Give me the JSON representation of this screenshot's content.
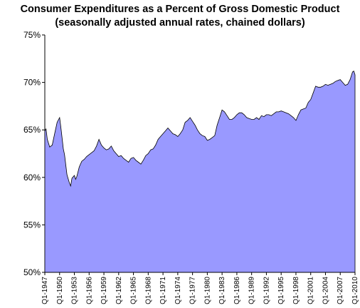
{
  "chart_data": {
    "type": "area",
    "title": "Consumer Expenditures as a Percent of Gross Domestic Product",
    "subtitle": "(seasonally adjusted annual rates, chained dollars)",
    "xlabel": "",
    "ylabel": "",
    "ylim": [
      50,
      75
    ],
    "y_ticks": [
      "50%",
      "55%",
      "60%",
      "65%",
      "70%",
      "75%"
    ],
    "x_ticks": [
      "Q1-1947",
      "Q1-1950",
      "Q1-1953",
      "Q1-1956",
      "Q1-1959",
      "Q1-1962",
      "Q1-1965",
      "Q1-1968",
      "Q1-1971",
      "Q1-1974",
      "Q1-1977",
      "Q1-1980",
      "Q1-1983",
      "Q1-1986",
      "Q1-1989",
      "Q1-1992",
      "Q1-1995",
      "Q1-1998",
      "Q1-2001",
      "Q1-2004",
      "Q1-2007",
      "Q1-2010"
    ],
    "x_range": [
      1947.0,
      2010.0
    ],
    "grid": false,
    "legend": "none",
    "fill_color": "#9999ff",
    "series": [
      {
        "x": [
          1947.0,
          1947.25,
          1947.5,
          1948.0,
          1948.5,
          1949.0,
          1949.5,
          1950.0,
          1950.25,
          1950.5,
          1950.75,
          1951.0,
          1951.5,
          1952.0,
          1952.25,
          1952.5,
          1953.0,
          1953.25,
          1953.5,
          1954.0,
          1954.5,
          1955.0,
          1955.5,
          1956.0,
          1956.5,
          1957.0,
          1957.5,
          1958.0,
          1958.5,
          1959.0,
          1959.5,
          1960.0,
          1960.5,
          1961.0,
          1961.5,
          1962.0,
          1962.5,
          1963.0,
          1963.5,
          1964.0,
          1964.5,
          1965.0,
          1965.5,
          1966.0,
          1966.5,
          1967.0,
          1967.5,
          1968.0,
          1968.5,
          1969.0,
          1969.5,
          1970.0,
          1970.5,
          1971.0,
          1971.5,
          1972.0,
          1972.5,
          1973.0,
          1973.5,
          1974.0,
          1974.5,
          1975.0,
          1975.5,
          1976.0,
          1976.5,
          1977.0,
          1977.5,
          1978.0,
          1978.5,
          1979.0,
          1979.5,
          1980.0,
          1980.5,
          1981.0,
          1981.5,
          1982.0,
          1982.5,
          1983.0,
          1983.5,
          1984.0,
          1984.5,
          1985.0,
          1985.5,
          1986.0,
          1986.5,
          1987.0,
          1987.5,
          1988.0,
          1988.5,
          1989.0,
          1989.5,
          1990.0,
          1990.5,
          1991.0,
          1991.5,
          1992.0,
          1992.5,
          1993.0,
          1993.5,
          1994.0,
          1994.5,
          1995.0,
          1995.5,
          1996.0,
          1996.5,
          1997.0,
          1997.5,
          1998.0,
          1998.5,
          1999.0,
          1999.5,
          2000.0,
          2000.5,
          2001.0,
          2001.5,
          2002.0,
          2002.5,
          2003.0,
          2003.5,
          2004.0,
          2004.5,
          2005.0,
          2005.5,
          2006.0,
          2006.5,
          2007.0,
          2007.5,
          2008.0,
          2008.5,
          2009.0,
          2009.5,
          2009.75,
          2010.0
        ],
        "values": [
          64.9,
          65.1,
          64.0,
          63.2,
          63.4,
          64.6,
          65.8,
          66.3,
          65.3,
          64.2,
          63.0,
          62.4,
          60.3,
          59.4,
          59.1,
          59.9,
          60.2,
          59.8,
          60.1,
          61.1,
          61.7,
          61.9,
          62.2,
          62.4,
          62.6,
          62.8,
          63.3,
          64.0,
          63.4,
          63.1,
          62.9,
          63.0,
          63.3,
          62.8,
          62.5,
          62.2,
          62.3,
          62.0,
          61.8,
          61.6,
          62.0,
          62.1,
          61.8,
          61.6,
          61.4,
          61.8,
          62.3,
          62.5,
          62.9,
          63.0,
          63.4,
          64.0,
          64.3,
          64.6,
          64.9,
          65.2,
          64.9,
          64.6,
          64.5,
          64.3,
          64.6,
          65.0,
          65.8,
          66.0,
          66.3,
          65.9,
          65.5,
          65.0,
          64.6,
          64.4,
          64.3,
          63.9,
          64.0,
          64.2,
          64.4,
          65.5,
          66.3,
          67.1,
          66.9,
          66.5,
          66.1,
          66.1,
          66.3,
          66.6,
          66.8,
          66.8,
          66.6,
          66.3,
          66.2,
          66.1,
          66.1,
          66.3,
          66.1,
          66.5,
          66.4,
          66.6,
          66.6,
          66.5,
          66.7,
          66.9,
          66.9,
          67.0,
          66.9,
          66.8,
          66.7,
          66.5,
          66.3,
          66.0,
          66.6,
          67.1,
          67.2,
          67.3,
          67.9,
          68.2,
          68.9,
          69.6,
          69.5,
          69.5,
          69.6,
          69.8,
          69.7,
          69.8,
          69.9,
          70.1,
          70.2,
          70.3,
          70.0,
          69.7,
          69.8,
          70.3,
          71.1,
          71.2,
          70.8
        ]
      }
    ]
  }
}
